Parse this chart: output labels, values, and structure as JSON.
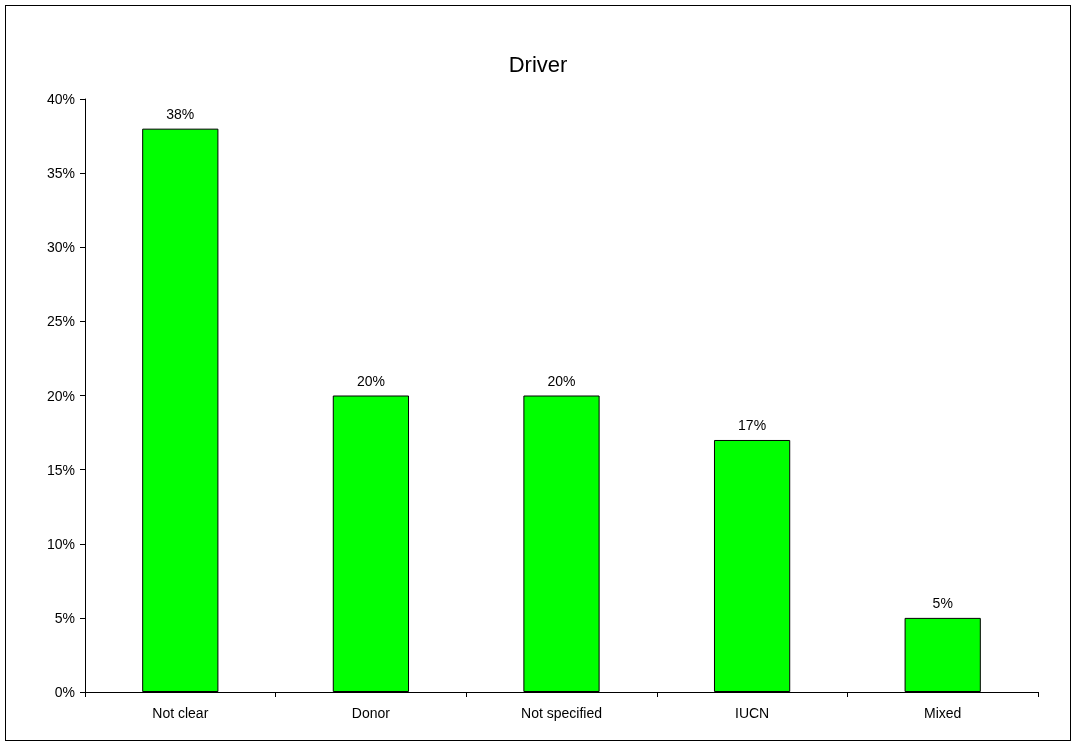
{
  "chart_data": {
    "type": "bar",
    "title": "Driver",
    "categories": [
      "Not clear",
      "Donor",
      "Not specified",
      "IUCN",
      "Mixed"
    ],
    "values": [
      38,
      20,
      20,
      17,
      5
    ],
    "value_labels": [
      "38%",
      "20%",
      "20%",
      "17%",
      "5%"
    ],
    "color": "#00ff00",
    "ylim": [
      0,
      40
    ],
    "yticks": [
      {
        "value": 0,
        "label": "0%"
      },
      {
        "value": 5,
        "label": "5%"
      },
      {
        "value": 10,
        "label": "10%"
      },
      {
        "value": 15,
        "label": "15%"
      },
      {
        "value": 20,
        "label": "20%"
      },
      {
        "value": 25,
        "label": "25%"
      },
      {
        "value": 30,
        "label": "30%"
      },
      {
        "value": 35,
        "label": "35%"
      },
      {
        "value": 40,
        "label": "40%"
      }
    ],
    "grid": false
  }
}
